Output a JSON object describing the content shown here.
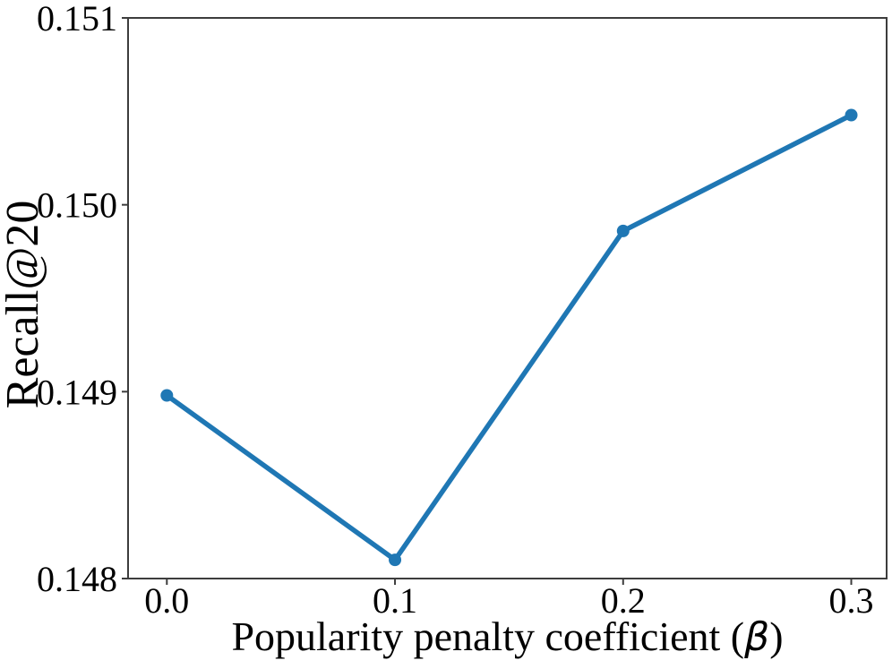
{
  "chart_data": {
    "type": "line",
    "title": "",
    "xlabel_prefix": "Popularity penalty coefficient (",
    "xlabel_symbol": "β",
    "xlabel_suffix": ")",
    "xlabel_full": "Popularity penalty coefficient (β)",
    "ylabel": "Recall@20",
    "x": [
      0.0,
      0.1,
      0.2,
      0.3
    ],
    "y": [
      0.14898,
      0.1481,
      0.14986,
      0.15048
    ],
    "xticks": {
      "values": [
        0.0,
        0.1,
        0.2,
        0.3
      ],
      "labels": [
        "0.0",
        "0.1",
        "0.2",
        "0.3"
      ]
    },
    "yticks": {
      "values": [
        0.148,
        0.149,
        0.15,
        0.151
      ],
      "labels": [
        "0.148",
        "0.149",
        "0.150",
        "0.151"
      ]
    },
    "xlim": [
      -0.017,
      0.3155
    ],
    "ylim": [
      0.148,
      0.151
    ],
    "grid": false,
    "legend": null,
    "colors": {
      "line": "#1f77b4",
      "marker": "#1f77b4",
      "spine": "#3d3d3d",
      "tick": "#3d3d3d",
      "background": "#ffffff"
    }
  }
}
